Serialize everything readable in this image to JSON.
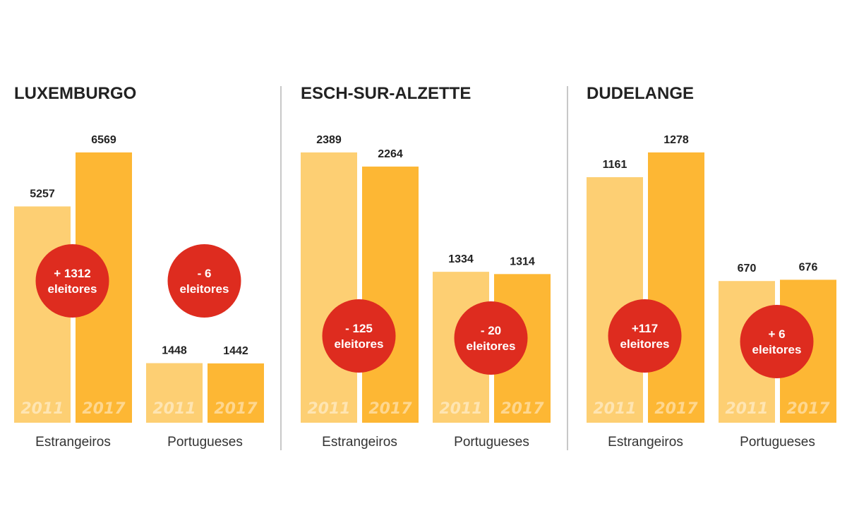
{
  "colors": {
    "bar_2011": "#FDCF73",
    "bar_2017": "#FDB734",
    "bubble": "#DE2C1F",
    "divider": "#C8C8C8"
  },
  "chart_data": [
    {
      "type": "bar",
      "title": "LUXEMBURGO",
      "categories": [
        "Estrangeiros",
        "Portugueses"
      ],
      "series": [
        {
          "name": "2011",
          "values": [
            5257,
            1448
          ]
        },
        {
          "name": "2017",
          "values": [
            6569,
            1442
          ]
        }
      ],
      "annotations": [
        {
          "line1": "+ 1312",
          "line2": "eleitores"
        },
        {
          "line1": "- 6",
          "line2": "eleitores"
        }
      ],
      "ylim": [
        0,
        6569
      ]
    },
    {
      "type": "bar",
      "title": "ESCH-SUR-ALZETTE",
      "categories": [
        "Estrangeiros",
        "Portugueses"
      ],
      "series": [
        {
          "name": "2011",
          "values": [
            2389,
            1334
          ]
        },
        {
          "name": "2017",
          "values": [
            2264,
            1314
          ]
        }
      ],
      "annotations": [
        {
          "line1": "- 125",
          "line2": "eleitores"
        },
        {
          "line1": "- 20",
          "line2": "eleitores"
        }
      ],
      "ylim": [
        0,
        2389
      ]
    },
    {
      "type": "bar",
      "title": "DUDELANGE",
      "categories": [
        "Estrangeiros",
        "Portugueses"
      ],
      "series": [
        {
          "name": "2011",
          "values": [
            1161,
            670
          ]
        },
        {
          "name": "2017",
          "values": [
            1278,
            676
          ]
        }
      ],
      "annotations": [
        {
          "line1": "+117",
          "line2": "eleitores"
        },
        {
          "line1": "+ 6",
          "line2": "eleitores"
        }
      ],
      "ylim": [
        0,
        1278
      ]
    }
  ]
}
